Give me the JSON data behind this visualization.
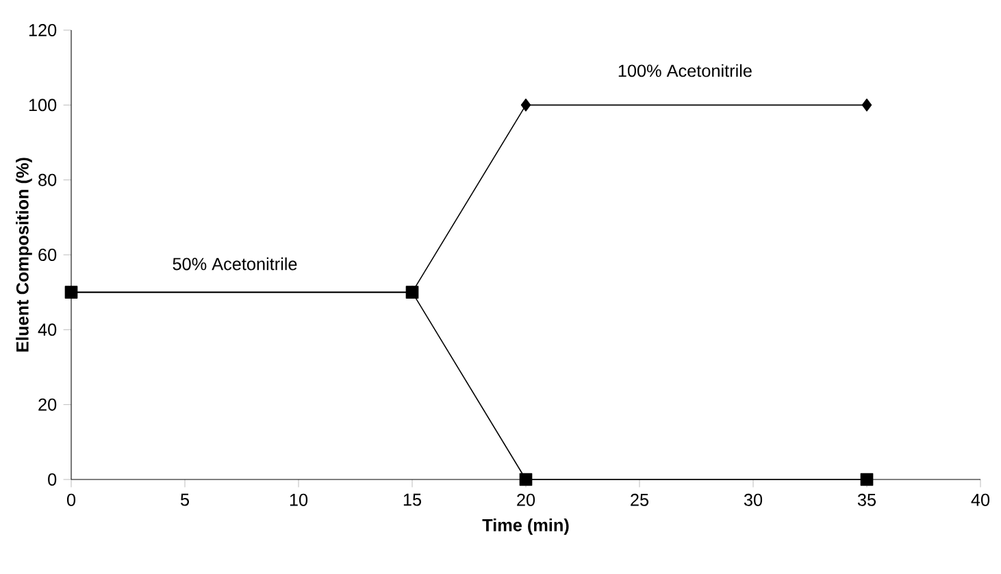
{
  "chart_data": {
    "type": "line",
    "xlabel": "Time (min)",
    "ylabel": "Eluent Composition (%)",
    "x": [
      0,
      15,
      20,
      35
    ],
    "series": [
      {
        "color": "#000000",
        "values": [
          50,
          50,
          100,
          100
        ],
        "marker": "diamond"
      },
      {
        "color": "#000000",
        "values": [
          50,
          50,
          0,
          0
        ],
        "marker": "square"
      }
    ],
    "xlim": [
      0,
      40
    ],
    "xticks": [
      0,
      5,
      10,
      15,
      20,
      25,
      30,
      35,
      40
    ],
    "ylim": [
      0,
      120
    ],
    "yticks": [
      0,
      20,
      40,
      60,
      80,
      100,
      120
    ],
    "line_style": "solid",
    "grid": false,
    "annotations": [
      "50% Acetonitrile",
      "100% Acetonitrile"
    ]
  }
}
